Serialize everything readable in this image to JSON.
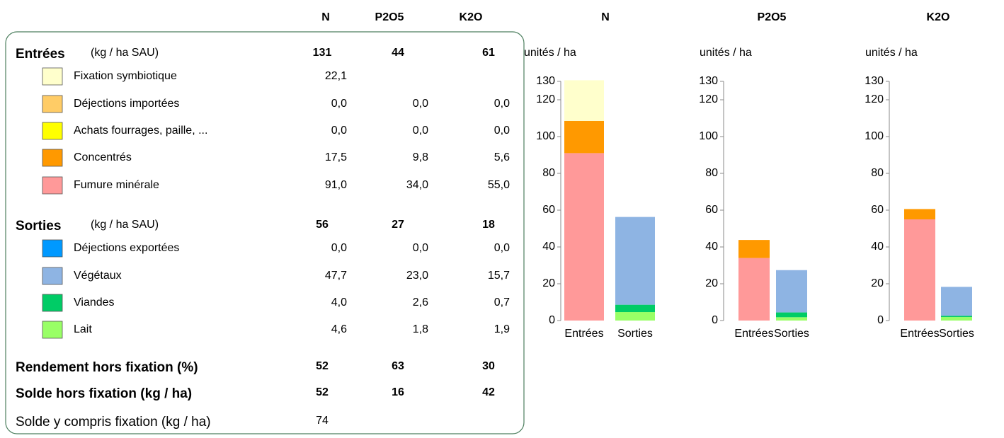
{
  "table": {
    "header": [
      "N",
      "P2O5",
      "K2O"
    ],
    "sections": [
      {
        "title": "Entrées",
        "unit": "(kg / ha SAU)",
        "totals": [
          "131",
          "44",
          "61"
        ],
        "rows": [
          {
            "label": "Fixation symbiotique",
            "color": "#ffffcc",
            "values": [
              "22,1"
            ]
          },
          {
            "label": "Déjections importées",
            "color": "#ffcc66",
            "values": [
              "0,0",
              "0,0",
              "0,0"
            ]
          },
          {
            "label": "Achats fourrages, paille, ...",
            "color": "#ffff00",
            "values": [
              "0,0",
              "0,0",
              "0,0"
            ]
          },
          {
            "label": "Concentrés",
            "color": "#ff9900",
            "values": [
              "17,5",
              "9,8",
              "5,6"
            ]
          },
          {
            "label": "Fumure minérale",
            "color": "#ff9999",
            "values": [
              "91,0",
              "34,0",
              "55,0"
            ]
          }
        ]
      },
      {
        "title": "Sorties",
        "unit": "(kg / ha SAU)",
        "totals": [
          "56",
          "27",
          "18"
        ],
        "rows": [
          {
            "label": "Déjections exportées",
            "color": "#0099ff",
            "values": [
              "0,0",
              "0,0",
              "0,0"
            ]
          },
          {
            "label": "Végétaux",
            "color": "#8eb4e3",
            "values": [
              "47,7",
              "23,0",
              "15,7"
            ]
          },
          {
            "label": "Viandes",
            "color": "#00cc66",
            "values": [
              "4,0",
              "2,6",
              "0,7"
            ]
          },
          {
            "label": "Lait",
            "color": "#99ff66",
            "values": [
              "4,6",
              "1,8",
              "1,9"
            ]
          }
        ]
      }
    ],
    "summary": [
      {
        "label": "Rendement hors fixation (%)",
        "values": [
          "52",
          "63",
          "30"
        ],
        "bold": true
      },
      {
        "label": "Solde hors fixation (kg / ha)",
        "values": [
          "52",
          "16",
          "42"
        ],
        "bold": true
      },
      {
        "label": "Solde y compris fixation (kg / ha)",
        "values": [
          "74"
        ],
        "bold": false
      }
    ]
  },
  "chart_data": [
    {
      "type": "bar",
      "stacked": true,
      "title": "N",
      "y_label": "unités / ha",
      "categories": [
        "Entrées",
        "Sorties"
      ],
      "ylim": [
        0,
        130
      ],
      "yticks": [
        0,
        20,
        40,
        60,
        80,
        100,
        120,
        130
      ],
      "series": [
        {
          "color": "#ff9999",
          "values": [
            91.0,
            null
          ]
        },
        {
          "color": "#ff9900",
          "values": [
            17.5,
            null
          ]
        },
        {
          "color": "#ffff00",
          "values": [
            0.0,
            null
          ]
        },
        {
          "color": "#ffcc66",
          "values": [
            0.0,
            null
          ]
        },
        {
          "color": "#ffffcc",
          "values": [
            22.1,
            null
          ]
        },
        {
          "color": "#99ff66",
          "values": [
            null,
            4.6
          ]
        },
        {
          "color": "#00cc66",
          "values": [
            null,
            4.0
          ]
        },
        {
          "color": "#8eb4e3",
          "values": [
            null,
            47.7
          ]
        },
        {
          "color": "#0099ff",
          "values": [
            null,
            0.0
          ]
        }
      ]
    },
    {
      "type": "bar",
      "stacked": true,
      "title": "P2O5",
      "y_label": "unités / ha",
      "categories": [
        "Entrées",
        "Sorties"
      ],
      "ylim": [
        0,
        130
      ],
      "yticks": [
        0,
        20,
        40,
        60,
        80,
        100,
        120,
        130
      ],
      "series": [
        {
          "color": "#ff9999",
          "values": [
            34.0,
            null
          ]
        },
        {
          "color": "#ff9900",
          "values": [
            9.8,
            null
          ]
        },
        {
          "color": "#ffff00",
          "values": [
            0.0,
            null
          ]
        },
        {
          "color": "#ffcc66",
          "values": [
            0.0,
            null
          ]
        },
        {
          "color": "#99ff66",
          "values": [
            null,
            1.8
          ]
        },
        {
          "color": "#00cc66",
          "values": [
            null,
            2.6
          ]
        },
        {
          "color": "#8eb4e3",
          "values": [
            null,
            23.0
          ]
        },
        {
          "color": "#0099ff",
          "values": [
            null,
            0.0
          ]
        }
      ]
    },
    {
      "type": "bar",
      "stacked": true,
      "title": "K2O",
      "y_label": "unités / ha",
      "categories": [
        "Entrées",
        "Sorties"
      ],
      "ylim": [
        0,
        130
      ],
      "yticks": [
        0,
        20,
        40,
        60,
        80,
        100,
        120,
        130
      ],
      "series": [
        {
          "color": "#ff9999",
          "values": [
            55.0,
            null
          ]
        },
        {
          "color": "#ff9900",
          "values": [
            5.6,
            null
          ]
        },
        {
          "color": "#ffff00",
          "values": [
            0.0,
            null
          ]
        },
        {
          "color": "#ffcc66",
          "values": [
            0.0,
            null
          ]
        },
        {
          "color": "#99ff66",
          "values": [
            null,
            1.9
          ]
        },
        {
          "color": "#00cc66",
          "values": [
            null,
            0.7
          ]
        },
        {
          "color": "#8eb4e3",
          "values": [
            null,
            15.7
          ]
        },
        {
          "color": "#0099ff",
          "values": [
            null,
            0.0
          ]
        }
      ]
    }
  ]
}
